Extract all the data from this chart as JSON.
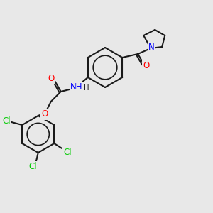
{
  "background_color": "#e8e8e8",
  "bond_color": "#1a1a1a",
  "atom_colors": {
    "N": "#0000ff",
    "O": "#ff0000",
    "Cl": "#00cc00"
  },
  "lw": 1.5,
  "font_size": 8.5
}
